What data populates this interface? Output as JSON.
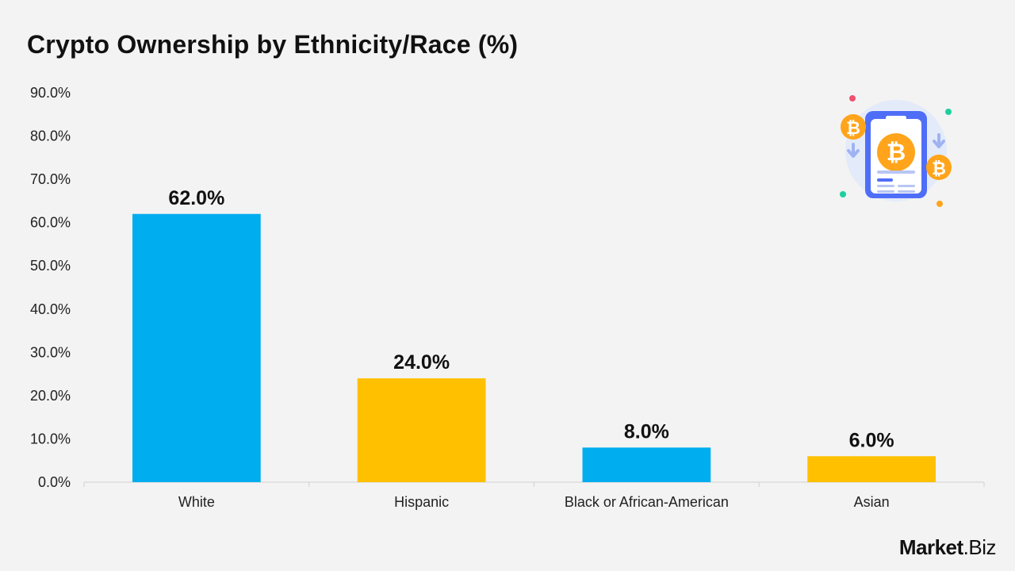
{
  "header": {
    "title": "Crypto Ownership by Ethnicity/Race (%)"
  },
  "brand": {
    "name_bold": "Market",
    "name_regular": ".Biz"
  },
  "illustration": {
    "icon": "bitcoin-phone-icon"
  },
  "colors": {
    "blue": "#00adef",
    "yellow": "#ffc000",
    "background": "#f3f3f3"
  },
  "chart_data": {
    "type": "bar",
    "title": "Crypto Ownership by Ethnicity/Race (%)",
    "xlabel": "",
    "ylabel": "",
    "categories": [
      "White",
      "Hispanic",
      "Black or African-American",
      "Asian"
    ],
    "values": [
      62.0,
      24.0,
      8.0,
      6.0
    ],
    "value_labels": [
      "62.0%",
      "24.0%",
      "8.0%",
      "6.0%"
    ],
    "bar_colors": [
      "#00adef",
      "#ffc000",
      "#00adef",
      "#ffc000"
    ],
    "ylim": [
      0,
      90
    ],
    "yticks": [
      0,
      10,
      20,
      30,
      40,
      50,
      60,
      70,
      80,
      90
    ],
    "ytick_labels": [
      "0.0%",
      "10.0%",
      "20.0%",
      "30.0%",
      "40.0%",
      "50.0%",
      "60.0%",
      "70.0%",
      "80.0%",
      "90.0%"
    ],
    "grid": false,
    "legend": "none"
  }
}
